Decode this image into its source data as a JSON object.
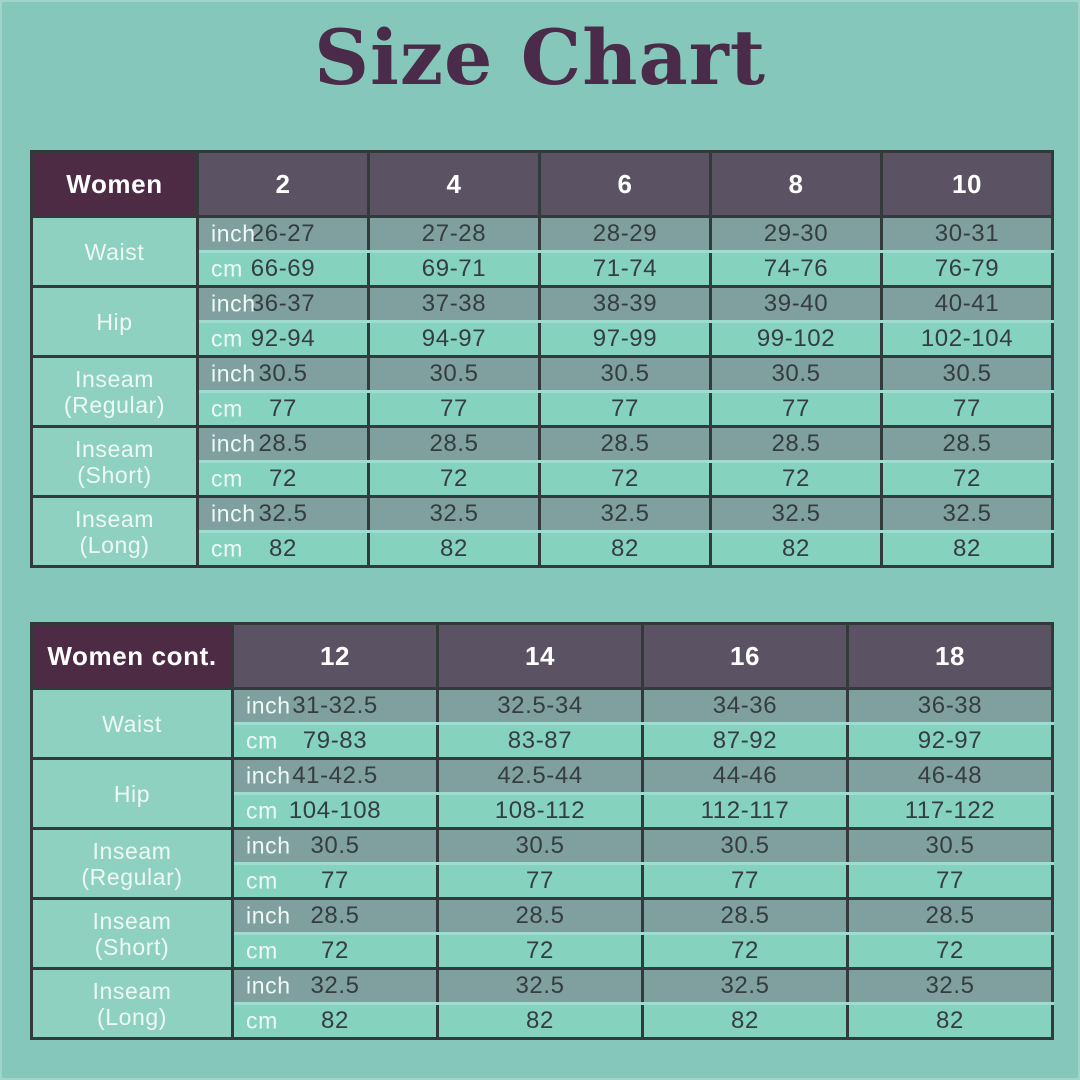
{
  "page": {
    "title": "Size Chart"
  },
  "units": [
    "inch",
    "cm"
  ],
  "colors": {
    "background": "#85c8bb",
    "title_text": "#4a2b4a",
    "corner_header_bg": "#4e2b44",
    "size_header_bg": "#5b5264",
    "header_text": "#ffffff",
    "inch_row_bg": "#7fa09f",
    "cm_row_bg": "#85d2be",
    "label_column_bg": "#8fd1c1",
    "label_text": "#eef9f4",
    "value_text": "#353d42",
    "border_dark": "#333a3b",
    "border_light": "#9ddcce"
  },
  "chart_data": [
    {
      "type": "table",
      "title": "Women",
      "columns": [
        "2",
        "4",
        "6",
        "8",
        "10"
      ],
      "measurements": [
        {
          "label_lines": [
            "Waist"
          ],
          "inch": [
            "26-27",
            "27-28",
            "28-29",
            "29-30",
            "30-31"
          ],
          "cm": [
            "66-69",
            "69-71",
            "71-74",
            "74-76",
            "76-79"
          ]
        },
        {
          "label_lines": [
            "Hip"
          ],
          "inch": [
            "36-37",
            "37-38",
            "38-39",
            "39-40",
            "40-41"
          ],
          "cm": [
            "92-94",
            "94-97",
            "97-99",
            "99-102",
            "102-104"
          ]
        },
        {
          "label_lines": [
            "Inseam",
            "(Regular)"
          ],
          "inch": [
            "30.5",
            "30.5",
            "30.5",
            "30.5",
            "30.5"
          ],
          "cm": [
            "77",
            "77",
            "77",
            "77",
            "77"
          ]
        },
        {
          "label_lines": [
            "Inseam",
            "(Short)"
          ],
          "inch": [
            "28.5",
            "28.5",
            "28.5",
            "28.5",
            "28.5"
          ],
          "cm": [
            "72",
            "72",
            "72",
            "72",
            "72"
          ]
        },
        {
          "label_lines": [
            "Inseam",
            "(Long)"
          ],
          "inch": [
            "32.5",
            "32.5",
            "32.5",
            "32.5",
            "32.5"
          ],
          "cm": [
            "82",
            "82",
            "82",
            "82",
            "82"
          ]
        }
      ]
    },
    {
      "type": "table",
      "title": "Women cont.",
      "columns": [
        "12",
        "14",
        "16",
        "18"
      ],
      "measurements": [
        {
          "label_lines": [
            "Waist"
          ],
          "inch": [
            "31-32.5",
            "32.5-34",
            "34-36",
            "36-38"
          ],
          "cm": [
            "79-83",
            "83-87",
            "87-92",
            "92-97"
          ]
        },
        {
          "label_lines": [
            "Hip"
          ],
          "inch": [
            "41-42.5",
            "42.5-44",
            "44-46",
            "46-48"
          ],
          "cm": [
            "104-108",
            "108-112",
            "112-117",
            "117-122"
          ]
        },
        {
          "label_lines": [
            "Inseam",
            "(Regular)"
          ],
          "inch": [
            "30.5",
            "30.5",
            "30.5",
            "30.5"
          ],
          "cm": [
            "77",
            "77",
            "77",
            "77"
          ]
        },
        {
          "label_lines": [
            "Inseam",
            "(Short)"
          ],
          "inch": [
            "28.5",
            "28.5",
            "28.5",
            "28.5"
          ],
          "cm": [
            "72",
            "72",
            "72",
            "72"
          ]
        },
        {
          "label_lines": [
            "Inseam",
            "(Long)"
          ],
          "inch": [
            "32.5",
            "32.5",
            "32.5",
            "32.5"
          ],
          "cm": [
            "82",
            "82",
            "82",
            "82"
          ]
        }
      ]
    }
  ]
}
